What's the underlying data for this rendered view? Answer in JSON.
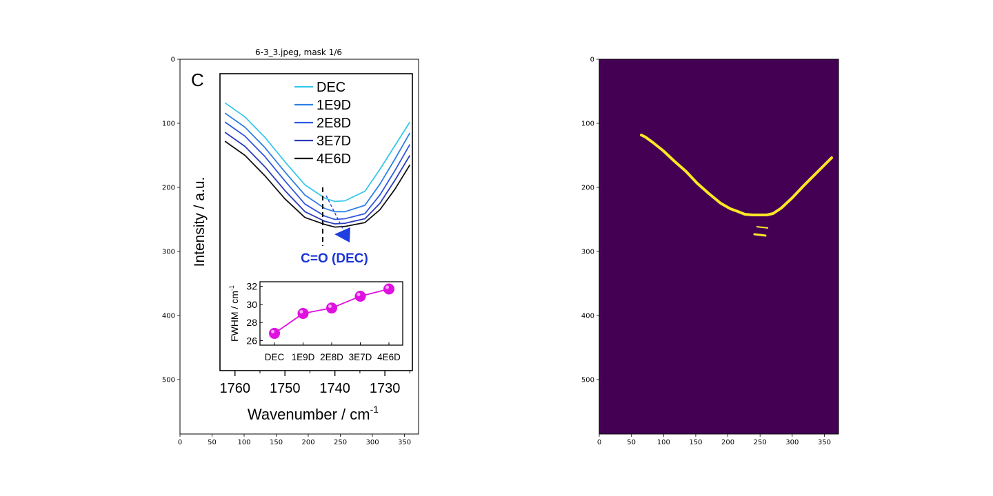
{
  "figure": {
    "left_title": "6-3_3.jpeg, mask 1/6",
    "left_axes": {
      "xticks": [
        "0",
        "50",
        "100",
        "150",
        "200",
        "250",
        "300",
        "350"
      ],
      "yticks": [
        "0",
        "100",
        "200",
        "300",
        "400",
        "500"
      ],
      "xlim": [
        0,
        372
      ],
      "ylim": [
        585,
        0
      ]
    },
    "right_axes": {
      "xticks": [
        "0",
        "50",
        "100",
        "150",
        "200",
        "250",
        "300",
        "350"
      ],
      "yticks": [
        "0",
        "100",
        "200",
        "300",
        "400",
        "500"
      ],
      "xlim": [
        0,
        372
      ],
      "ylim": [
        585,
        0
      ],
      "mask_background": "#440154",
      "mask_foreground": "#fde725"
    }
  },
  "inner_figure": {
    "panel_letter": "C",
    "ylabel": "Intensity / a.u.",
    "xlabel_base": "Wavenumber / cm",
    "xlabel_exp": "-1",
    "xticks": [
      "1760",
      "1750",
      "1740",
      "1730"
    ],
    "annotation": "C=O (DEC)",
    "legend": [
      "DEC",
      "1E9D",
      "2E8D",
      "3E7D",
      "4E6D"
    ],
    "colors": {
      "DEC": "#36c7ec",
      "1E9D": "#2e7fe6",
      "2E8D": "#2f57e0",
      "3E7D": "#2a3bb8",
      "4E6D": "#111111",
      "arrow": "#1f3fe0",
      "annotation": "#1a33d6",
      "inset": "#e010e0"
    },
    "inset": {
      "ylabel_base": "FWHM / cm",
      "ylabel_exp": "-1",
      "yticks": [
        "26",
        "28",
        "30",
        "32"
      ],
      "categories": [
        "DEC",
        "1E9D",
        "2E8D",
        "3E7D",
        "4E6D"
      ]
    }
  },
  "chart_data": [
    {
      "type": "line",
      "title": "",
      "xlabel": "Wavenumber / cm-1",
      "ylabel": "Intensity / a.u.",
      "x_reversed": true,
      "xlim": [
        1763,
        1724.5
      ],
      "series": [
        {
          "name": "DEC",
          "points": [
            [
              1762,
              68
            ],
            [
              1758,
              90
            ],
            [
              1754,
              122
            ],
            [
              1750,
              160
            ],
            [
              1746,
              196
            ],
            [
              1742,
              217
            ],
            [
              1740,
              222
            ],
            [
              1738,
              221
            ],
            [
              1734,
              206
            ],
            [
              1731,
              172
            ],
            [
              1728,
              135
            ],
            [
              1725,
              98
            ]
          ]
        },
        {
          "name": "1E9D",
          "points": [
            [
              1762,
              84
            ],
            [
              1758,
              106
            ],
            [
              1754,
              138
            ],
            [
              1750,
              176
            ],
            [
              1746,
              212
            ],
            [
              1742,
              233
            ],
            [
              1740,
              238
            ],
            [
              1738,
              238
            ],
            [
              1734,
              228
            ],
            [
              1731,
              195
            ],
            [
              1728,
              156
            ],
            [
              1725,
              115
            ]
          ]
        },
        {
          "name": "2E8D",
          "points": [
            [
              1762,
              98
            ],
            [
              1758,
              120
            ],
            [
              1754,
              152
            ],
            [
              1750,
              190
            ],
            [
              1746,
              226
            ],
            [
              1742,
              245
            ],
            [
              1740,
              250
            ],
            [
              1738,
              249
            ],
            [
              1734,
              241
            ],
            [
              1731,
              212
            ],
            [
              1728,
              174
            ],
            [
              1725,
              133
            ]
          ]
        },
        {
          "name": "3E7D",
          "points": [
            [
              1762,
              114
            ],
            [
              1758,
              136
            ],
            [
              1754,
              168
            ],
            [
              1750,
              205
            ],
            [
              1746,
              238
            ],
            [
              1742,
              253
            ],
            [
              1740,
              257
            ],
            [
              1738,
              256
            ],
            [
              1734,
              249
            ],
            [
              1731,
              225
            ],
            [
              1728,
              189
            ],
            [
              1725,
              150
            ]
          ]
        },
        {
          "name": "4E6D",
          "points": [
            [
              1762,
              128
            ],
            [
              1758,
              150
            ],
            [
              1754,
              182
            ],
            [
              1750,
              218
            ],
            [
              1746,
              247
            ],
            [
              1742,
              258
            ],
            [
              1740,
              262
            ],
            [
              1738,
              261
            ],
            [
              1734,
              255
            ],
            [
              1731,
              235
            ],
            [
              1728,
              203
            ],
            [
              1725,
              165
            ]
          ]
        }
      ]
    },
    {
      "type": "line",
      "title": "",
      "xlabel": "",
      "ylabel": "FWHM / cm-1",
      "categories": [
        "DEC",
        "1E9D",
        "2E8D",
        "3E7D",
        "4E6D"
      ],
      "values": [
        26.8,
        29.0,
        29.6,
        30.9,
        31.7
      ],
      "ylim": [
        25.5,
        32.5
      ]
    }
  ]
}
